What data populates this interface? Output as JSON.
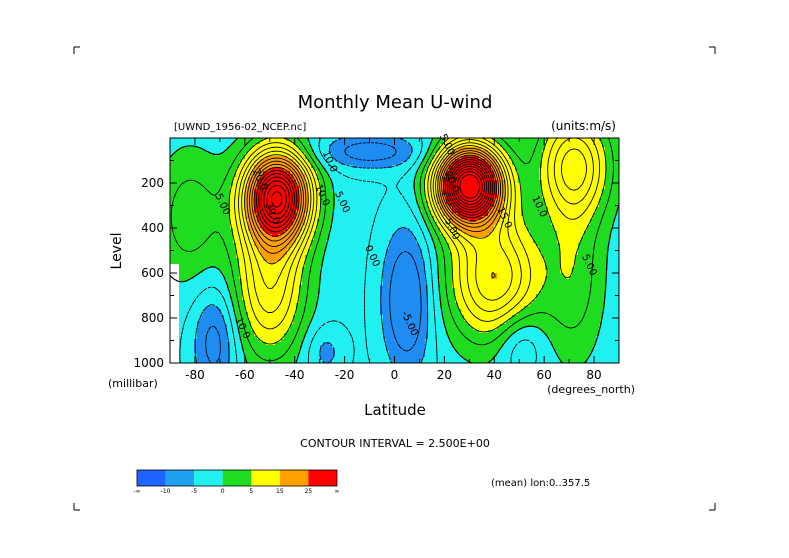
{
  "chart_data": {
    "type": "heatmap",
    "title": "Monthly Mean U-wind",
    "file_label": "[UWND_1956-02_NCEP.nc]",
    "units_label": "(units:m/s)",
    "xlabel": "Latitude",
    "x_units": "(degrees_north)",
    "ylabel": "Level",
    "y_units": "(millibar)",
    "xlim": [
      -90,
      90
    ],
    "ylim": [
      1000,
      0
    ],
    "x_ticks": [
      -80,
      -60,
      -40,
      -20,
      0,
      20,
      40,
      60,
      80
    ],
    "x_tick_labels": [
      "-80",
      "-60",
      "-40",
      "-20",
      "0",
      "20",
      "40",
      "60",
      "80"
    ],
    "y_ticks": [
      200,
      400,
      600,
      800,
      1000
    ],
    "y_tick_labels": [
      "200",
      "400",
      "600",
      "800",
      "1000"
    ],
    "contour_interval_text": "CONTOUR INTERVAL = 2.500E+00",
    "region_text": "(mean) lon:0..357.5",
    "contour_labels": [
      {
        "text": "5.00",
        "x": -70,
        "y": 300
      },
      {
        "text": "20.0",
        "x": -55,
        "y": 190
      },
      {
        "text": "30.0",
        "x": -50,
        "y": 340
      },
      {
        "text": "10.0",
        "x": -30,
        "y": 260
      },
      {
        "text": "5.00",
        "x": -22,
        "y": 290
      },
      {
        "text": "10.0",
        "x": -27,
        "y": 110
      },
      {
        "text": "0.00",
        "x": -10,
        "y": 530
      },
      {
        "text": "10.0",
        "x": -62,
        "y": 850
      },
      {
        "text": "-5.00",
        "x": 5,
        "y": 830
      },
      {
        "text": "5.00",
        "x": 22,
        "y": 410
      },
      {
        "text": "20.0",
        "x": 22,
        "y": 200
      },
      {
        "text": "15.0",
        "x": 43,
        "y": 360
      },
      {
        "text": "10.0",
        "x": 57,
        "y": 310
      },
      {
        "text": "5.00",
        "x": 77,
        "y": 570
      },
      {
        "text": "5.00",
        "x": 20,
        "y": 35
      }
    ],
    "colorbar": {
      "colors": [
        "#1e64ff",
        "#20a0f0",
        "#20f0f0",
        "#20dc20",
        "#ffff00",
        "#ffa000",
        "#ff0000"
      ],
      "tick_labels": [
        "-∞",
        "-10",
        "-5",
        "0",
        "5",
        "15",
        "25",
        "∞"
      ]
    },
    "color_levels": {
      "colors": [
        "#1e8cf0",
        "#20f0f0",
        "#20dc20",
        "#ffff00",
        "#ffa000",
        "#ff0000"
      ]
    }
  }
}
